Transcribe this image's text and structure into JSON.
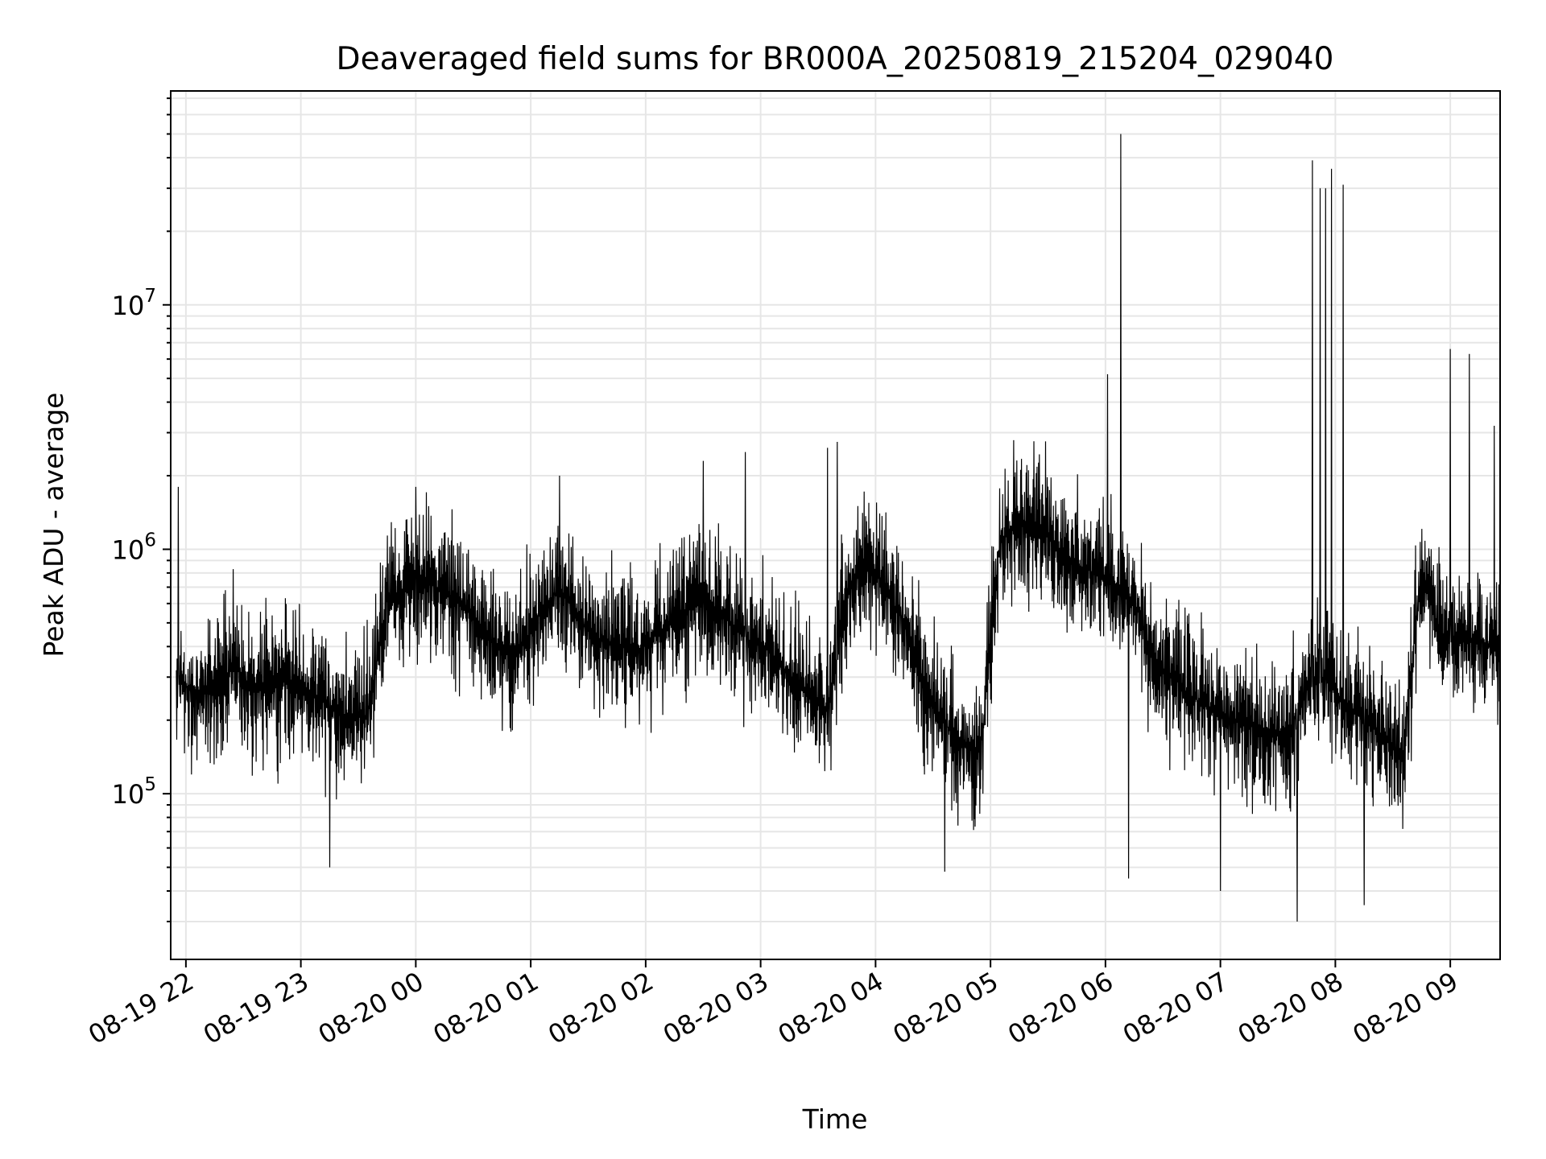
{
  "chart_data": {
    "type": "line",
    "title": "Deaveraged field sums for BR000A_20250819_215204_029040",
    "xlabel": "Time",
    "ylabel": "Peak ADU - average",
    "yscale": "log",
    "grid": true,
    "xlim": [
      "2025-08-19T21:52:04",
      "2025-08-20T09:26:00"
    ],
    "ylim": [
      21000,
      75000000
    ],
    "xticks": [
      {
        "value": "2025-08-19T22:00",
        "label": "08-19 22"
      },
      {
        "value": "2025-08-19T23:00",
        "label": "08-19 23"
      },
      {
        "value": "2025-08-20T00:00",
        "label": "08-20 00"
      },
      {
        "value": "2025-08-20T01:00",
        "label": "08-20 01"
      },
      {
        "value": "2025-08-20T02:00",
        "label": "08-20 02"
      },
      {
        "value": "2025-08-20T03:00",
        "label": "08-20 03"
      },
      {
        "value": "2025-08-20T04:00",
        "label": "08-20 04"
      },
      {
        "value": "2025-08-20T05:00",
        "label": "08-20 05"
      },
      {
        "value": "2025-08-20T06:00",
        "label": "08-20 06"
      },
      {
        "value": "2025-08-20T07:00",
        "label": "08-20 07"
      },
      {
        "value": "2025-08-20T08:00",
        "label": "08-20 08"
      },
      {
        "value": "2025-08-20T09:00",
        "label": "08-20 09"
      }
    ],
    "yticks": [
      {
        "value": 100000,
        "base": "10",
        "exp": "5"
      },
      {
        "value": 1000000,
        "base": "10",
        "exp": "6"
      },
      {
        "value": 10000000,
        "base": "10",
        "exp": "7"
      }
    ],
    "series": [
      {
        "color": "#000000",
        "x": [
          "2025-08-19T21:55",
          "2025-08-19T22:05",
          "2025-08-19T22:15",
          "2025-08-19T22:25",
          "2025-08-19T22:35",
          "2025-08-19T22:45",
          "2025-08-19T22:55",
          "2025-08-19T23:05",
          "2025-08-19T23:15",
          "2025-08-19T23:25",
          "2025-08-19T23:35",
          "2025-08-19T23:45",
          "2025-08-19T23:55",
          "2025-08-20T00:05",
          "2025-08-20T00:15",
          "2025-08-20T00:25",
          "2025-08-20T00:35",
          "2025-08-20T00:45",
          "2025-08-20T00:55",
          "2025-08-20T01:05",
          "2025-08-20T01:15",
          "2025-08-20T01:25",
          "2025-08-20T01:35",
          "2025-08-20T01:45",
          "2025-08-20T01:55",
          "2025-08-20T02:05",
          "2025-08-20T02:15",
          "2025-08-20T02:25",
          "2025-08-20T02:35",
          "2025-08-20T02:45",
          "2025-08-20T02:55",
          "2025-08-20T03:05",
          "2025-08-20T03:15",
          "2025-08-20T03:25",
          "2025-08-20T03:35",
          "2025-08-20T03:45",
          "2025-08-20T03:55",
          "2025-08-20T04:05",
          "2025-08-20T04:15",
          "2025-08-20T04:25",
          "2025-08-20T04:35",
          "2025-08-20T04:45",
          "2025-08-20T04:55",
          "2025-08-20T05:05",
          "2025-08-20T05:15",
          "2025-08-20T05:25",
          "2025-08-20T05:35",
          "2025-08-20T05:45",
          "2025-08-20T05:55",
          "2025-08-20T06:05",
          "2025-08-20T06:15",
          "2025-08-20T06:25",
          "2025-08-20T06:35",
          "2025-08-20T06:45",
          "2025-08-20T06:55",
          "2025-08-20T07:05",
          "2025-08-20T07:15",
          "2025-08-20T07:25",
          "2025-08-20T07:35",
          "2025-08-20T07:45",
          "2025-08-20T07:55",
          "2025-08-20T08:05",
          "2025-08-20T08:15",
          "2025-08-20T08:25",
          "2025-08-20T08:35",
          "2025-08-20T08:45",
          "2025-08-20T08:55",
          "2025-08-20T09:05",
          "2025-08-20T09:15",
          "2025-08-20T09:25"
        ],
        "y": [
          300000,
          250000,
          280000,
          330000,
          270000,
          300000,
          280000,
          260000,
          230000,
          200000,
          210000,
          620000,
          700000,
          750000,
          650000,
          600000,
          450000,
          380000,
          400000,
          550000,
          700000,
          520000,
          430000,
          410000,
          380000,
          440000,
          520000,
          600000,
          560000,
          500000,
          420000,
          380000,
          300000,
          260000,
          220000,
          650000,
          900000,
          700000,
          500000,
          280000,
          200000,
          160000,
          150000,
          1100000,
          1300000,
          1250000,
          1000000,
          850000,
          800000,
          700000,
          620000,
          350000,
          300000,
          250000,
          220000,
          200000,
          190000,
          180000,
          170000,
          280000,
          300000,
          230000,
          200000,
          170000,
          140000,
          800000,
          450000,
          420000,
          430000,
          380000
        ],
        "peaks": [
          {
            "x": "2025-08-19T21:56",
            "y": 1800000
          },
          {
            "x": "2025-08-20T00:00",
            "y": 1800000
          },
          {
            "x": "2025-08-20T01:15",
            "y": 2000000
          },
          {
            "x": "2025-08-20T02:30",
            "y": 2300000
          },
          {
            "x": "2025-08-20T02:52",
            "y": 2500000
          },
          {
            "x": "2025-08-20T03:35",
            "y": 2600000
          },
          {
            "x": "2025-08-20T03:40",
            "y": 2750000
          },
          {
            "x": "2025-08-20T06:01",
            "y": 5200000
          },
          {
            "x": "2025-08-20T06:08",
            "y": 50000000
          },
          {
            "x": "2025-08-20T07:48",
            "y": 39000000
          },
          {
            "x": "2025-08-20T07:52",
            "y": 30000000
          },
          {
            "x": "2025-08-20T07:55",
            "y": 30000000
          },
          {
            "x": "2025-08-20T07:58",
            "y": 36000000
          },
          {
            "x": "2025-08-20T08:04",
            "y": 31000000
          },
          {
            "x": "2025-08-20T09:00",
            "y": 6600000
          },
          {
            "x": "2025-08-20T09:10",
            "y": 6300000
          },
          {
            "x": "2025-08-20T09:23",
            "y": 3200000
          }
        ],
        "dips": [
          {
            "x": "2025-08-19T23:15",
            "y": 50000
          },
          {
            "x": "2025-08-20T04:36",
            "y": 48000
          },
          {
            "x": "2025-08-20T06:12",
            "y": 45000
          },
          {
            "x": "2025-08-20T07:00",
            "y": 40000
          },
          {
            "x": "2025-08-20T07:40",
            "y": 30000
          },
          {
            "x": "2025-08-20T08:15",
            "y": 35000
          }
        ]
      }
    ]
  }
}
